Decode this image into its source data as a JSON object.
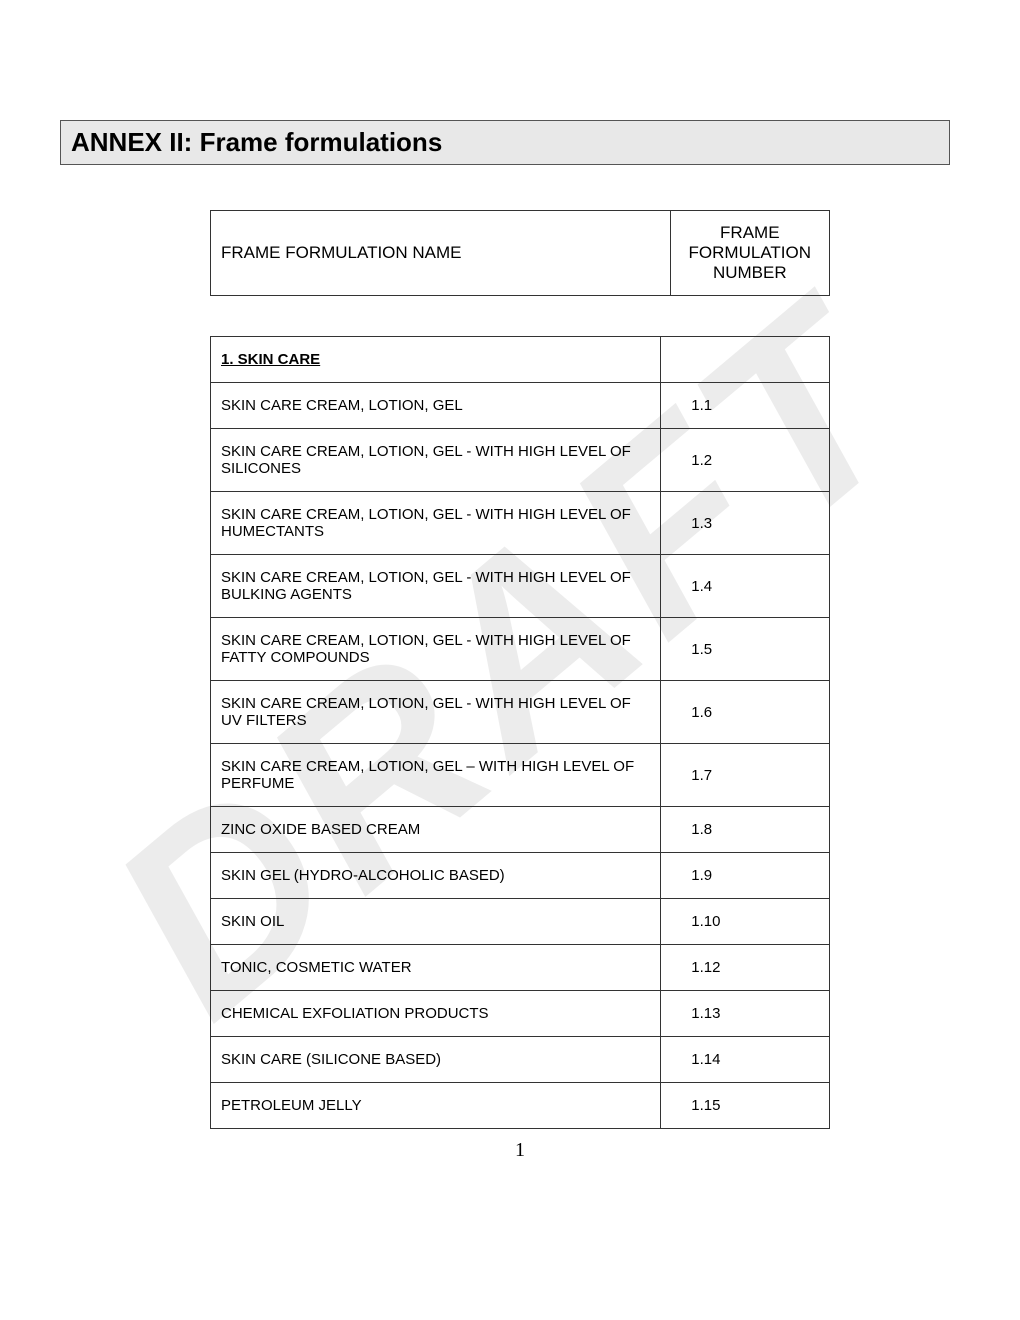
{
  "watermark_text": "DRAFT",
  "title": "ANNEX II: Frame formulations",
  "header": {
    "name_label": "FRAME FORMULATION NAME",
    "number_label": "FRAME FORMULATION NUMBER"
  },
  "section_title": "1.  SKIN CARE",
  "rows": [
    {
      "name": "SKIN CARE CREAM, LOTION, GEL",
      "num": "1.1"
    },
    {
      "name": "SKIN CARE CREAM, LOTION, GEL - WITH HIGH LEVEL OF SILICONES",
      "num": "1.2"
    },
    {
      "name": "SKIN CARE CREAM, LOTION, GEL - WITH HIGH LEVEL OF HUMECTANTS",
      "num": "1.3"
    },
    {
      "name": "SKIN CARE CREAM, LOTION, GEL - WITH HIGH LEVEL OF BULKING AGENTS",
      "num": "1.4"
    },
    {
      "name": "SKIN CARE CREAM, LOTION, GEL - WITH HIGH LEVEL OF FATTY COMPOUNDS",
      "num": "1.5"
    },
    {
      "name": "SKIN CARE CREAM, LOTION, GEL - WITH HIGH LEVEL OF UV FILTERS",
      "num": "1.6"
    },
    {
      "name": "SKIN CARE CREAM, LOTION, GEL – WITH HIGH LEVEL OF PERFUME",
      "num": "1.7"
    },
    {
      "name": "ZINC OXIDE BASED CREAM",
      "num": "1.8"
    },
    {
      "name": "SKIN GEL (HYDRO-ALCOHOLIC BASED)",
      "num": "1.9"
    },
    {
      "name": "SKIN OIL",
      "num": "1.10"
    },
    {
      "name": "TONIC, COSMETIC WATER",
      "num": "1.12"
    },
    {
      "name": "CHEMICAL EXFOLIATION PRODUCTS",
      "num": "1.13"
    },
    {
      "name": "SKIN CARE  (SILICONE BASED)",
      "num": "1.14"
    },
    {
      "name": "PETROLEUM JELLY",
      "num": "1.15"
    }
  ],
  "page_number": "1",
  "colors": {
    "title_bg": "#e8e8e8",
    "border": "#333333",
    "watermark": "rgba(180,180,180,0.25)",
    "background": "#ffffff"
  }
}
